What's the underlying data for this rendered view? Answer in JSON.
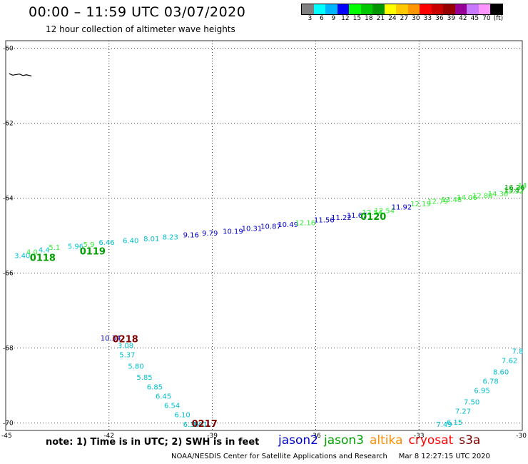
{
  "header": {
    "title": "00:00 – 11:59 UTC 03/07/2020",
    "subtitle": "12 hour collection of altimeter wave heights"
  },
  "colorbar": {
    "colors": [
      "#808080",
      "#00ffff",
      "#00b4ff",
      "#0000ff",
      "#00ff00",
      "#00c800",
      "#009600",
      "#ffff00",
      "#ffc800",
      "#ff9600",
      "#ff0000",
      "#c80000",
      "#960000",
      "#960096",
      "#c878ff",
      "#ff96ff",
      "#000000"
    ],
    "labels": [
      "3",
      "6",
      "9",
      "12",
      "15",
      "18",
      "21",
      "24",
      "27",
      "30",
      "33",
      "36",
      "39",
      "42",
      "45",
      "70",
      "(ft)"
    ]
  },
  "map": {
    "colors": {
      "jason2": "#0000cc",
      "jason3": "#00a000",
      "altika": "#ff8c00",
      "cryosat": "#ff0000",
      "s3a": "#800000",
      "cyan": "#00c0d0",
      "lightgreen": "#33ee33",
      "darkgreen": "#00a000",
      "pass_label": "#7f0000"
    },
    "lon_range": [
      -45,
      -30
    ],
    "lat_range": [
      -70.2,
      -59.8
    ],
    "lon_ticks": [
      {
        "value": -45,
        "label": "-45"
      },
      {
        "value": -42,
        "label": "-42"
      },
      {
        "value": -39,
        "label": "-39"
      },
      {
        "value": -36,
        "label": "-36"
      },
      {
        "value": -33,
        "label": "-33"
      },
      {
        "value": -30,
        "label": "-30"
      }
    ],
    "lat_ticks": [
      {
        "value": -60,
        "label": "-60"
      },
      {
        "value": -62,
        "label": "-62"
      },
      {
        "value": -64,
        "label": "-64"
      },
      {
        "value": -66,
        "label": "-66"
      },
      {
        "value": -68,
        "label": "-68"
      },
      {
        "value": -70,
        "label": "-70"
      }
    ],
    "coast": [
      [
        -44.9,
        -60.68
      ],
      [
        -44.8,
        -60.72
      ],
      [
        -44.6,
        -60.69
      ],
      [
        -44.5,
        -60.73
      ],
      [
        -44.4,
        -60.71
      ],
      [
        -44.25,
        -60.74
      ]
    ],
    "observations": [
      {
        "lon": -44.75,
        "lat": -65.6,
        "text": "3.40",
        "color": "cyan"
      },
      {
        "lon": -44.4,
        "lat": -65.5,
        "text": "4.0",
        "color": "lightgreen"
      },
      {
        "lon": -44.05,
        "lat": -65.45,
        "text": "4.4",
        "color": "cyan"
      },
      {
        "lon": -43.75,
        "lat": -65.38,
        "text": "5.1",
        "color": "lightgreen"
      },
      {
        "lon": -43.2,
        "lat": -65.35,
        "text": "5.96",
        "color": "cyan"
      },
      {
        "lon": -42.75,
        "lat": -65.3,
        "text": "5.9",
        "color": "lightgreen"
      },
      {
        "lon": -42.3,
        "lat": -65.25,
        "text": "6.46",
        "color": "cyan"
      },
      {
        "lon": -41.6,
        "lat": -65.2,
        "text": "6.40",
        "color": "cyan"
      },
      {
        "lon": -41.0,
        "lat": -65.15,
        "text": "8.01",
        "color": "cyan"
      },
      {
        "lon": -40.45,
        "lat": -65.1,
        "text": "8.23",
        "color": "cyan"
      },
      {
        "lon": -39.85,
        "lat": -65.05,
        "text": "9.16",
        "color": "jason2"
      },
      {
        "lon": -39.3,
        "lat": -65.0,
        "text": "9.79",
        "color": "jason2"
      },
      {
        "lon": -38.7,
        "lat": -64.95,
        "text": "10.19",
        "color": "jason2"
      },
      {
        "lon": -38.15,
        "lat": -64.88,
        "text": "10.31",
        "color": "jason2"
      },
      {
        "lon": -37.6,
        "lat": -64.82,
        "text": "10.87",
        "color": "jason2"
      },
      {
        "lon": -37.1,
        "lat": -64.77,
        "text": "10.49",
        "color": "jason2"
      },
      {
        "lon": -36.6,
        "lat": -64.72,
        "text": "12.16",
        "color": "lightgreen"
      },
      {
        "lon": -36.05,
        "lat": -64.65,
        "text": "11.56",
        "color": "jason2"
      },
      {
        "lon": -35.55,
        "lat": -64.58,
        "text": "11.22",
        "color": "jason2"
      },
      {
        "lon": -35.1,
        "lat": -64.52,
        "text": "11.67",
        "color": "jason2"
      },
      {
        "lon": -34.65,
        "lat": -64.45,
        "text": "12.54",
        "color": "lightgreen"
      },
      {
        "lon": -34.3,
        "lat": -64.4,
        "text": "12.54",
        "color": "lightgreen"
      },
      {
        "lon": -33.8,
        "lat": -64.3,
        "text": "11.92",
        "color": "jason2"
      },
      {
        "lon": -33.25,
        "lat": -64.22,
        "text": "12.19",
        "color": "lightgreen"
      },
      {
        "lon": -32.75,
        "lat": -64.15,
        "text": "12.79",
        "color": "lightgreen"
      },
      {
        "lon": -32.35,
        "lat": -64.1,
        "text": "13.48",
        "color": "lightgreen"
      },
      {
        "lon": -31.9,
        "lat": -64.05,
        "text": "14.06",
        "color": "lightgreen"
      },
      {
        "lon": -31.45,
        "lat": -64.0,
        "text": "12.80",
        "color": "lightgreen"
      },
      {
        "lon": -31.0,
        "lat": -63.95,
        "text": "14.30",
        "color": "lightgreen"
      },
      {
        "lon": -30.55,
        "lat": -63.88,
        "text": "13.92",
        "color": "lightgreen"
      },
      {
        "lon": -30.1,
        "lat": -63.85,
        "text": "15.27",
        "color": "darkgreen"
      },
      {
        "lon": -29.6,
        "lat": -63.78,
        "text": "16.26",
        "color": "darkgreen"
      },
      {
        "lon": -29.1,
        "lat": -63.72,
        "text": "14",
        "color": "lightgreen"
      },
      {
        "lon": -42.25,
        "lat": -67.8,
        "text": "10.34",
        "color": "jason2"
      },
      {
        "lon": -41.75,
        "lat": -68.0,
        "text": "3.08",
        "color": "cyan"
      },
      {
        "lon": -41.7,
        "lat": -68.25,
        "text": "5.37",
        "color": "cyan"
      },
      {
        "lon": -41.45,
        "lat": -68.55,
        "text": "5.80",
        "color": "cyan"
      },
      {
        "lon": -41.2,
        "lat": -68.85,
        "text": "5.85",
        "color": "cyan"
      },
      {
        "lon": -40.9,
        "lat": -69.1,
        "text": "6.85",
        "color": "cyan"
      },
      {
        "lon": -40.65,
        "lat": -69.35,
        "text": "6.45",
        "color": "cyan"
      },
      {
        "lon": -40.4,
        "lat": -69.6,
        "text": "6.54",
        "color": "cyan"
      },
      {
        "lon": -40.1,
        "lat": -69.85,
        "text": "6.10",
        "color": "cyan"
      },
      {
        "lon": -39.85,
        "lat": -70.1,
        "text": "6.36",
        "color": "cyan"
      },
      {
        "lon": -39.6,
        "lat": -70.35,
        "text": "7.01",
        "color": "cyan"
      },
      {
        "lon": -32.5,
        "lat": -70.3,
        "text": "7.49",
        "color": "cyan"
      },
      {
        "lon": -32.2,
        "lat": -70.05,
        "text": "6.15",
        "color": "cyan"
      },
      {
        "lon": -31.95,
        "lat": -69.75,
        "text": "7.27",
        "color": "cyan"
      },
      {
        "lon": -31.7,
        "lat": -69.5,
        "text": "7.50",
        "color": "cyan"
      },
      {
        "lon": -31.4,
        "lat": -69.2,
        "text": "6.95",
        "color": "cyan"
      },
      {
        "lon": -31.15,
        "lat": -68.95,
        "text": "6.78",
        "color": "cyan"
      },
      {
        "lon": -30.85,
        "lat": -68.7,
        "text": "8.60",
        "color": "cyan"
      },
      {
        "lon": -30.6,
        "lat": -68.4,
        "text": "7.62",
        "color": "cyan"
      },
      {
        "lon": -30.3,
        "lat": -68.15,
        "text": "7.8",
        "color": "cyan"
      }
    ],
    "pass_labels": [
      {
        "lon": -44.3,
        "lat": -65.68,
        "text": "0118",
        "color": "darkgreen"
      },
      {
        "lon": -42.85,
        "lat": -65.5,
        "text": "0119",
        "color": "darkgreen"
      },
      {
        "lon": -34.7,
        "lat": -64.58,
        "text": "0120",
        "color": "darkgreen"
      },
      {
        "lon": -41.9,
        "lat": -67.85,
        "text": "0218",
        "color": "pass_label"
      },
      {
        "lon": -39.6,
        "lat": -70.35,
        "text": "0217",
        "color": "pass_label"
      }
    ]
  },
  "footer": {
    "note": "note:  1) Time is in UTC;  2) SWH is in feet",
    "legend": [
      {
        "name": "jason2",
        "color": "#0000cc"
      },
      {
        "name": "jason3",
        "color": "#00a000"
      },
      {
        "name": "altika",
        "color": "#ff8c00"
      },
      {
        "name": "cryosat",
        "color": "#ff0000"
      },
      {
        "name": "s3a",
        "color": "#800000"
      }
    ],
    "credit": "NOAA/NESDIS Center for Satellite Applications and Research",
    "timestamp": "Mar  8 12:27:15 UTC 2020"
  }
}
